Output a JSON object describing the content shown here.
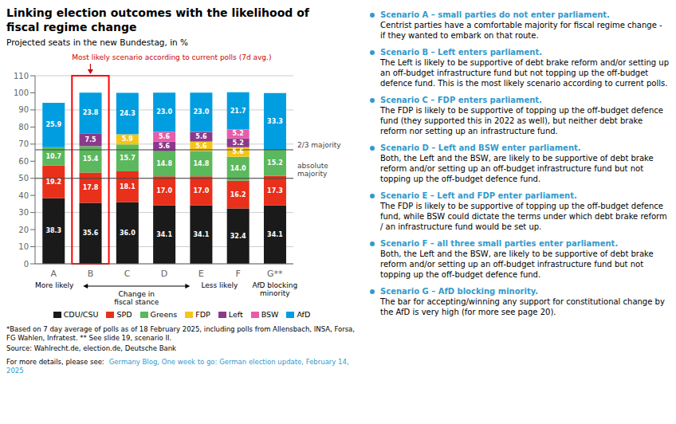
{
  "chart_data": {
    "type": "bar",
    "stacked": true,
    "title": "Linking election outcomes with the likelihood of\nfiscal regime change",
    "subtitle": "Projected seats in the new Bundestag, in %",
    "categories": [
      "A",
      "B",
      "C",
      "D",
      "E",
      "F",
      "G**"
    ],
    "series": [
      {
        "name": "CDU/CSU",
        "color": "#1a1a1a",
        "values": [
          38.3,
          35.6,
          36.0,
          34.1,
          34.1,
          32.4,
          34.1
        ],
        "value_labels": [
          "38.3",
          "35.6",
          "36.0",
          "34.1",
          "34.1",
          "32.4",
          "34.1"
        ]
      },
      {
        "name": "SPD",
        "color": "#e8301a",
        "values": [
          19.2,
          17.8,
          18.1,
          17.0,
          17.0,
          16.2,
          17.3
        ],
        "value_labels": [
          "19.2",
          "17.8",
          "18.1",
          "17.0",
          "17.0",
          "16.2",
          "17.3"
        ]
      },
      {
        "name": "Greens",
        "color": "#5cb85c",
        "values": [
          10.7,
          15.4,
          15.7,
          14.8,
          14.8,
          14.0,
          15.2
        ],
        "value_labels": [
          "10.7",
          "15.4",
          "15.7",
          "14.8",
          "14.8",
          "14.0",
          "15.2"
        ]
      },
      {
        "name": "FDP",
        "color": "#f5c518",
        "values": [
          0.0,
          0.0,
          5.9,
          0.0,
          5.6,
          5.6,
          0.0
        ],
        "value_labels": [
          null,
          null,
          "5.9",
          null,
          "5.6",
          "5.6",
          null
        ]
      },
      {
        "name": "Left",
        "color": "#8b3a8b",
        "values": [
          0.0,
          7.5,
          0.0,
          5.6,
          5.6,
          5.2,
          0.0
        ],
        "value_labels": [
          null,
          "7.5",
          null,
          "5.6",
          "5.6",
          "5.2",
          null
        ]
      },
      {
        "name": "BSW",
        "color": "#e85caa",
        "values": [
          0.0,
          0.0,
          0.0,
          5.6,
          0.0,
          5.2,
          0.0
        ],
        "value_labels": [
          null,
          null,
          null,
          "5.6",
          null,
          "5.2",
          null
        ]
      },
      {
        "name": "AfD",
        "color": "#009ee0",
        "values": [
          25.9,
          23.8,
          24.3,
          23.0,
          23.0,
          21.7,
          33.3
        ],
        "value_labels": [
          "25.9",
          "23.8",
          "24.3",
          "23.0",
          "23.0",
          "21.7",
          "33.3"
        ]
      }
    ],
    "ylim": [
      0,
      110
    ],
    "yticks": [
      0,
      10,
      20,
      30,
      40,
      50,
      60,
      70,
      80,
      90,
      100,
      110
    ],
    "grid": true,
    "data_labels": true,
    "legend": "bottom",
    "reference_lines": [
      {
        "value": 66.67,
        "label": "2/3 majority",
        "color": "#444444"
      },
      {
        "value": 50.0,
        "label": "absolute\nmajority",
        "color": "#444444"
      }
    ],
    "highlight": {
      "category": "B",
      "color": "#ff0000"
    },
    "annotations": [
      {
        "text": "Most likely scenario according to current polls (7d avg.)",
        "category": "B",
        "color": "#cc0000"
      }
    ],
    "x_notes": [
      "More likely",
      "Change in\nfiscal stance",
      "Less likely",
      "AfD blocking\nminority"
    ],
    "footnotes": [
      "*Based on 7 day average of polls as of 18 February 2025, including polls from Allensbach, INSA, Forsa, FG Wahlen, Infratest. ** See slide 19, scenario II.",
      "Source: Wahlrecht.de, election.de, Deutsche Bank"
    ],
    "source_line": {
      "text": "For more details, please see:",
      "link": "Germany Blog, One week to go: German election update, February 14, 2025",
      "link_color": "#3399cc"
    },
    "side_notes": {
      "color": "#3399cc",
      "items": [
        {
          "bold": "Scenario A – small parties do not enter parliament.",
          "text": "Centrist parties have a comfortable majority for fiscal regime change - if they wanted to embark on that route."
        },
        {
          "bold": "Scenario B – Left enters parliament.",
          "text": "The Left is likely to be supportive of debt brake reform and/or setting up an off-budget infrastructure fund but not topping up the off-budget defence fund. This is the most likely scenario according to current polls."
        },
        {
          "bold": "Scenario C – FDP enters parliament.",
          "text": "The FDP is likely to be supportive of topping up the off-budget defence fund (they supported this in 2022 as well), but neither debt brake reform nor setting up an infrastructure fund."
        },
        {
          "bold": "Scenario D – Left and BSW enter parliament.",
          "text": "Both, the Left and the BSW, are likely to be supportive of debt brake reform and/or setting up an off-budget infrastructure fund but not topping up the off-budget defence fund."
        },
        {
          "bold": "Scenario E – Left and FDP enter parliament.",
          "text": "The FDP is likely to be supportive of topping up the off-budget defence fund, while BSW could dictate the terms under which debt brake reform / an infrastructure fund would be set up."
        },
        {
          "bold": "Scenario F – all three small parties enter parliament.",
          "text": "Both, the Left and the BSW, are likely to be supportive of debt brake reform and/or setting up an off-budget infrastructure fund but not topping up the off-budget defence fund."
        },
        {
          "bold": "Scenario G – AfD blocking minority.",
          "text": "The bar for accepting/winning any support for constitutional change by the AfD is very high (for more see page 20)."
        }
      ]
    }
  }
}
